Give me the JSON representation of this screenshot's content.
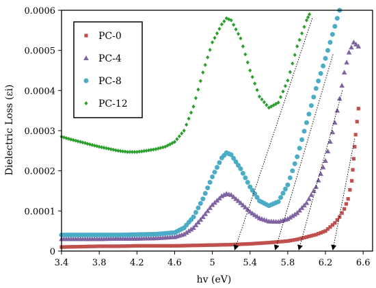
{
  "chart_data": {
    "type": "scatter",
    "xlabel": "hv (eV)",
    "ylabel": "Dielectric Loss (εi)",
    "xlim": [
      3.4,
      6.7
    ],
    "ylim": [
      0,
      0.0006
    ],
    "xticks": [
      "3.4",
      "3.8",
      "4.2",
      "4.6",
      "5",
      "5.4",
      "5.8",
      "6.2",
      "6.6"
    ],
    "yticks": [
      "0",
      "0.0001",
      "0.0002",
      "0.0003",
      "0.0004",
      "0.0005",
      "0.0006"
    ],
    "legend_position": "top-left",
    "grid": false,
    "series": [
      {
        "name": "PC-0",
        "marker": "square",
        "color": "#c0504d",
        "points": [
          [
            3.4,
            1e-05
          ],
          [
            3.6,
            1.1e-05
          ],
          [
            3.8,
            1.2e-05
          ],
          [
            4.0,
            1.2e-05
          ],
          [
            4.2,
            1.3e-05
          ],
          [
            4.4,
            1.3e-05
          ],
          [
            4.6,
            1.3e-05
          ],
          [
            4.8,
            1.4e-05
          ],
          [
            5.0,
            1.5e-05
          ],
          [
            5.2,
            1.6e-05
          ],
          [
            5.4,
            1.8e-05
          ],
          [
            5.6,
            2.1e-05
          ],
          [
            5.8,
            2.5e-05
          ],
          [
            5.9,
            2.9e-05
          ],
          [
            6.0,
            3.5e-05
          ],
          [
            6.1,
            4.1e-05
          ],
          [
            6.2,
            5e-05
          ],
          [
            6.3,
            7e-05
          ],
          [
            6.35,
            8.5e-05
          ],
          [
            6.4,
            0.000105
          ],
          [
            6.44,
            0.00013
          ],
          [
            6.48,
            0.000175
          ],
          [
            6.5,
            0.00023
          ],
          [
            6.52,
            0.00029
          ],
          [
            6.55,
            0.000355
          ]
        ]
      },
      {
        "name": "PC-4",
        "marker": "triangle",
        "color": "#8064a2",
        "points": [
          [
            3.4,
            3e-05
          ],
          [
            3.6,
            3e-05
          ],
          [
            3.8,
            3e-05
          ],
          [
            4.0,
            3.1e-05
          ],
          [
            4.2,
            3.1e-05
          ],
          [
            4.4,
            3.2e-05
          ],
          [
            4.6,
            3.5e-05
          ],
          [
            4.7,
            4.2e-05
          ],
          [
            4.8,
            5.8e-05
          ],
          [
            4.9,
            8.5e-05
          ],
          [
            5.0,
            0.000115
          ],
          [
            5.1,
            0.000137
          ],
          [
            5.15,
            0.000143
          ],
          [
            5.2,
            0.00014
          ],
          [
            5.3,
            0.00012
          ],
          [
            5.4,
            9.8e-05
          ],
          [
            5.5,
            8.2e-05
          ],
          [
            5.6,
            7.4e-05
          ],
          [
            5.7,
            7.3e-05
          ],
          [
            5.8,
            8e-05
          ],
          [
            5.9,
            9.5e-05
          ],
          [
            6.0,
            0.00012
          ],
          [
            6.1,
            0.00016
          ],
          [
            6.2,
            0.000225
          ],
          [
            6.3,
            0.00032
          ],
          [
            6.35,
            0.00038
          ],
          [
            6.4,
            0.000445
          ],
          [
            6.45,
            0.000495
          ],
          [
            6.5,
            0.00052
          ],
          [
            6.55,
            0.00051
          ]
        ]
      },
      {
        "name": "PC-8",
        "marker": "circle",
        "color": "#4bacc6",
        "points": [
          [
            3.4,
            4e-05
          ],
          [
            3.6,
            4e-05
          ],
          [
            3.8,
            4e-05
          ],
          [
            4.0,
            4e-05
          ],
          [
            4.2,
            4.1e-05
          ],
          [
            4.4,
            4.2e-05
          ],
          [
            4.6,
            4.6e-05
          ],
          [
            4.7,
            5.8e-05
          ],
          [
            4.8,
            8.5e-05
          ],
          [
            4.9,
            0.00013
          ],
          [
            5.0,
            0.000185
          ],
          [
            5.1,
            0.000232
          ],
          [
            5.15,
            0.000245
          ],
          [
            5.2,
            0.00024
          ],
          [
            5.3,
            0.000205
          ],
          [
            5.4,
            0.00016
          ],
          [
            5.5,
            0.000125
          ],
          [
            5.6,
            0.000113
          ],
          [
            5.7,
            0.000123
          ],
          [
            5.8,
            0.000165
          ],
          [
            5.9,
            0.000235
          ],
          [
            6.0,
            0.00032
          ],
          [
            6.1,
            0.000405
          ],
          [
            6.2,
            0.00048
          ],
          [
            6.25,
            0.00052
          ],
          [
            6.3,
            0.00056
          ],
          [
            6.35,
            0.0006
          ]
        ]
      },
      {
        "name": "PC-12",
        "marker": "diamond",
        "color": "#2ca02c",
        "points": [
          [
            3.4,
            0.000285
          ],
          [
            3.5,
            0.000278
          ],
          [
            3.6,
            0.000272
          ],
          [
            3.7,
            0.000266
          ],
          [
            3.8,
            0.00026
          ],
          [
            3.9,
            0.000255
          ],
          [
            4.0,
            0.00025
          ],
          [
            4.1,
            0.000247
          ],
          [
            4.2,
            0.000247
          ],
          [
            4.3,
            0.00025
          ],
          [
            4.4,
            0.000254
          ],
          [
            4.5,
            0.00026
          ],
          [
            4.6,
            0.000272
          ],
          [
            4.7,
            0.0003
          ],
          [
            4.8,
            0.00036
          ],
          [
            4.9,
            0.000445
          ],
          [
            5.0,
            0.00052
          ],
          [
            5.1,
            0.000565
          ],
          [
            5.15,
            0.00058
          ],
          [
            5.2,
            0.000575
          ],
          [
            5.3,
            0.00053
          ],
          [
            5.4,
            0.00045
          ],
          [
            5.5,
            0.000385
          ],
          [
            5.6,
            0.000357
          ],
          [
            5.7,
            0.00037
          ],
          [
            5.8,
            0.000425
          ],
          [
            5.9,
            0.00051
          ],
          [
            6.0,
            0.000575
          ],
          [
            6.03,
            0.00059
          ]
        ]
      }
    ],
    "annotations": [
      {
        "type": "arrow",
        "style": "dotted",
        "from": [
          6.06,
          0.00058
        ],
        "to": [
          5.24,
          5e-06
        ]
      },
      {
        "type": "arrow",
        "style": "dotted",
        "from": [
          6.28,
          0.00049
        ],
        "to": [
          5.67,
          5e-06
        ]
      },
      {
        "type": "arrow",
        "style": "dotted",
        "from": [
          6.38,
          0.0004
        ],
        "to": [
          5.92,
          5e-06
        ]
      },
      {
        "type": "arrow",
        "style": "dotted",
        "from": [
          6.51,
          0.00028
        ],
        "to": [
          6.28,
          5e-06
        ]
      }
    ]
  }
}
